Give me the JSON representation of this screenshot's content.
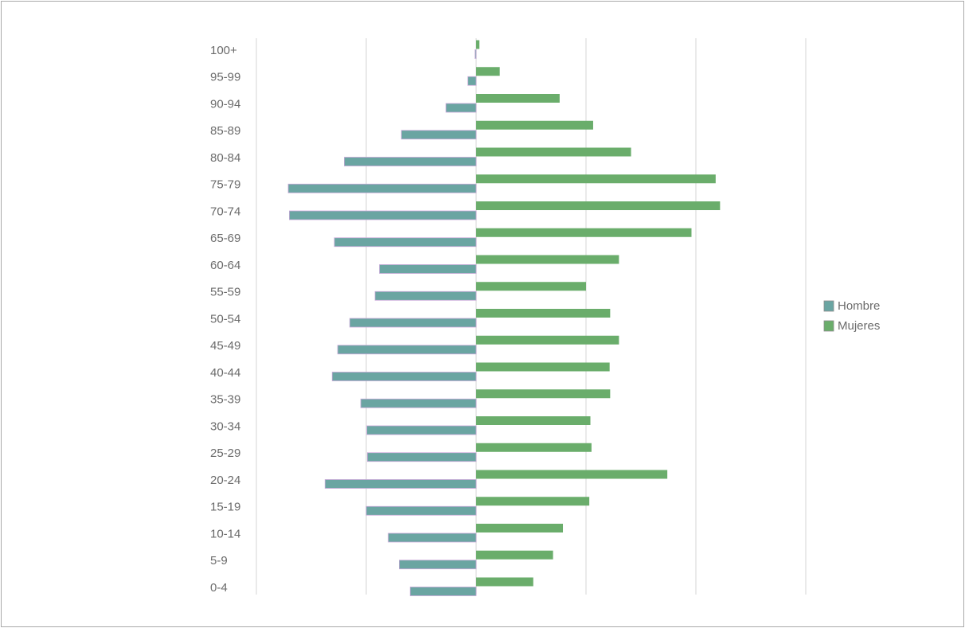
{
  "chart_data": {
    "type": "bar",
    "orientation": "horizontal",
    "subtype": "population-pyramid",
    "title": "",
    "xlabel": "",
    "ylabel": "",
    "categories": [
      "0-4",
      "5-9",
      "10-14",
      "15-19",
      "20-24",
      "25-29",
      "30-34",
      "35-39",
      "40-44",
      "45-49",
      "50-54",
      "55-59",
      "60-64",
      "65-69",
      "70-74",
      "75-79",
      "80-84",
      "85-89",
      "90-94",
      "95-99",
      "100+"
    ],
    "series": [
      {
        "name": "Hombre",
        "color": "#6aa5a2",
        "side": "left",
        "values": [
          1.2,
          1.4,
          1.6,
          2.0,
          2.75,
          1.98,
          1.99,
          2.1,
          2.62,
          2.52,
          2.3,
          1.84,
          1.76,
          2.58,
          3.4,
          3.42,
          2.4,
          1.36,
          0.55,
          0.15,
          0.02
        ]
      },
      {
        "name": "Mujeres",
        "color": "#6aad6b",
        "side": "right",
        "values": [
          1.04,
          1.4,
          1.58,
          2.06,
          3.48,
          2.1,
          2.08,
          2.44,
          2.43,
          2.6,
          2.44,
          2.0,
          2.6,
          3.92,
          4.44,
          4.36,
          2.82,
          2.13,
          1.52,
          0.43,
          0.06
        ]
      }
    ],
    "xlim": [
      -4,
      6
    ],
    "gridlines_at": [
      -4,
      -2,
      0,
      2,
      4,
      6
    ],
    "grid": true,
    "legend_position": "right"
  },
  "legend": {
    "items": [
      {
        "label": "Hombre",
        "color": "#6aa5a2"
      },
      {
        "label": "Mujeres",
        "color": "#6aad6b"
      }
    ]
  }
}
